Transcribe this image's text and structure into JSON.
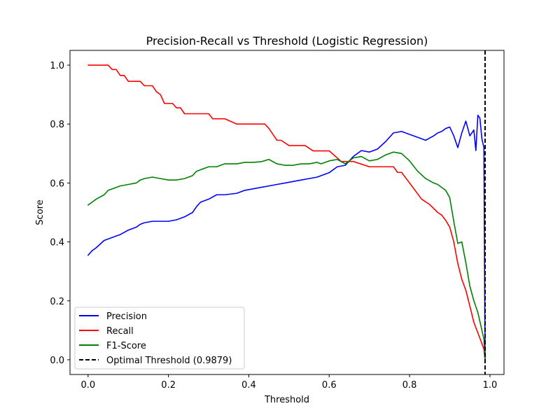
{
  "chart_data": {
    "type": "line",
    "title": "Precision-Recall vs Threshold (Logistic Regression)",
    "xlabel": "Threshold",
    "ylabel": "Score",
    "xlim": [
      -0.045,
      1.035
    ],
    "ylim": [
      -0.05,
      1.05
    ],
    "xticks": [
      0.0,
      0.2,
      0.4,
      0.6,
      0.8,
      1.0
    ],
    "xtick_labels": [
      "0.0",
      "0.2",
      "0.4",
      "0.6",
      "0.8",
      "1.0"
    ],
    "yticks": [
      0.0,
      0.2,
      0.4,
      0.6,
      0.8,
      1.0
    ],
    "ytick_labels": [
      "0.0",
      "0.2",
      "0.4",
      "0.6",
      "0.8",
      "1.0"
    ],
    "grid": false,
    "legend_position": "lower-left",
    "series": [
      {
        "name": "Precision",
        "color": "#0000ff",
        "x": [
          0.0,
          0.01,
          0.02,
          0.04,
          0.05,
          0.06,
          0.07,
          0.08,
          0.1,
          0.12,
          0.13,
          0.14,
          0.16,
          0.18,
          0.2,
          0.22,
          0.24,
          0.26,
          0.27,
          0.28,
          0.3,
          0.32,
          0.34,
          0.37,
          0.39,
          0.41,
          0.43,
          0.45,
          0.47,
          0.49,
          0.51,
          0.53,
          0.55,
          0.57,
          0.58,
          0.6,
          0.62,
          0.64,
          0.66,
          0.68,
          0.7,
          0.72,
          0.74,
          0.76,
          0.78,
          0.8,
          0.82,
          0.84,
          0.86,
          0.87,
          0.88,
          0.89,
          0.9,
          0.91,
          0.92,
          0.93,
          0.94,
          0.95,
          0.96,
          0.965,
          0.97,
          0.975,
          0.98,
          0.985,
          0.9879
        ],
        "y": [
          0.355,
          0.37,
          0.38,
          0.405,
          0.41,
          0.415,
          0.42,
          0.425,
          0.44,
          0.45,
          0.46,
          0.465,
          0.47,
          0.47,
          0.47,
          0.475,
          0.485,
          0.5,
          0.52,
          0.535,
          0.545,
          0.56,
          0.56,
          0.565,
          0.575,
          0.58,
          0.585,
          0.59,
          0.595,
          0.6,
          0.605,
          0.61,
          0.615,
          0.62,
          0.625,
          0.635,
          0.655,
          0.66,
          0.69,
          0.71,
          0.705,
          0.715,
          0.74,
          0.77,
          0.775,
          0.765,
          0.755,
          0.745,
          0.76,
          0.77,
          0.775,
          0.785,
          0.79,
          0.76,
          0.72,
          0.77,
          0.81,
          0.76,
          0.78,
          0.71,
          0.83,
          0.82,
          0.75,
          0.72,
          0.0
        ]
      },
      {
        "name": "Recall",
        "color": "#ff0000",
        "x": [
          0.0,
          0.05,
          0.06,
          0.07,
          0.08,
          0.09,
          0.1,
          0.11,
          0.12,
          0.13,
          0.14,
          0.16,
          0.17,
          0.18,
          0.19,
          0.21,
          0.22,
          0.23,
          0.24,
          0.25,
          0.3,
          0.31,
          0.33,
          0.34,
          0.37,
          0.38,
          0.44,
          0.45,
          0.46,
          0.47,
          0.48,
          0.5,
          0.5,
          0.54,
          0.56,
          0.6,
          0.63,
          0.64,
          0.66,
          0.7,
          0.76,
          0.77,
          0.78,
          0.8,
          0.83,
          0.85,
          0.87,
          0.88,
          0.89,
          0.9,
          0.91,
          0.92,
          0.93,
          0.94,
          0.95,
          0.96,
          0.97,
          0.98,
          0.985,
          0.9879
        ],
        "y": [
          1.0,
          1.0,
          0.985,
          0.985,
          0.965,
          0.965,
          0.945,
          0.945,
          0.945,
          0.945,
          0.93,
          0.93,
          0.91,
          0.9,
          0.87,
          0.87,
          0.855,
          0.855,
          0.835,
          0.835,
          0.835,
          0.818,
          0.818,
          0.818,
          0.8,
          0.8,
          0.8,
          0.785,
          0.765,
          0.745,
          0.745,
          0.727,
          0.727,
          0.727,
          0.709,
          0.709,
          0.673,
          0.673,
          0.673,
          0.655,
          0.655,
          0.636,
          0.636,
          0.6,
          0.545,
          0.527,
          0.5,
          0.491,
          0.473,
          0.45,
          0.4,
          0.327,
          0.273,
          0.236,
          0.182,
          0.127,
          0.091,
          0.055,
          0.036,
          0.0
        ]
      },
      {
        "name": "F1-Score",
        "color": "#008000",
        "x": [
          0.0,
          0.01,
          0.02,
          0.04,
          0.05,
          0.06,
          0.07,
          0.08,
          0.1,
          0.12,
          0.13,
          0.14,
          0.16,
          0.18,
          0.2,
          0.22,
          0.24,
          0.26,
          0.27,
          0.28,
          0.3,
          0.32,
          0.34,
          0.37,
          0.39,
          0.41,
          0.43,
          0.45,
          0.47,
          0.49,
          0.51,
          0.53,
          0.55,
          0.57,
          0.58,
          0.6,
          0.62,
          0.64,
          0.66,
          0.68,
          0.7,
          0.72,
          0.74,
          0.76,
          0.78,
          0.8,
          0.82,
          0.84,
          0.86,
          0.87,
          0.88,
          0.89,
          0.9,
          0.91,
          0.92,
          0.93,
          0.94,
          0.95,
          0.96,
          0.97,
          0.98,
          0.985,
          0.9879
        ],
        "y": [
          0.525,
          0.535,
          0.545,
          0.56,
          0.575,
          0.58,
          0.585,
          0.59,
          0.595,
          0.6,
          0.61,
          0.615,
          0.62,
          0.615,
          0.61,
          0.61,
          0.615,
          0.625,
          0.64,
          0.645,
          0.655,
          0.655,
          0.665,
          0.665,
          0.67,
          0.67,
          0.672,
          0.68,
          0.665,
          0.66,
          0.66,
          0.665,
          0.665,
          0.67,
          0.665,
          0.675,
          0.68,
          0.665,
          0.685,
          0.69,
          0.675,
          0.68,
          0.695,
          0.705,
          0.7,
          0.675,
          0.64,
          0.615,
          0.6,
          0.595,
          0.585,
          0.575,
          0.55,
          0.47,
          0.395,
          0.4,
          0.33,
          0.25,
          0.2,
          0.16,
          0.1,
          0.07,
          0.0
        ]
      }
    ],
    "annotations": [
      {
        "type": "vline",
        "name": "Optimal Threshold (0.9879)",
        "x": 0.9879,
        "color": "#000000",
        "style": "dashed"
      }
    ]
  }
}
